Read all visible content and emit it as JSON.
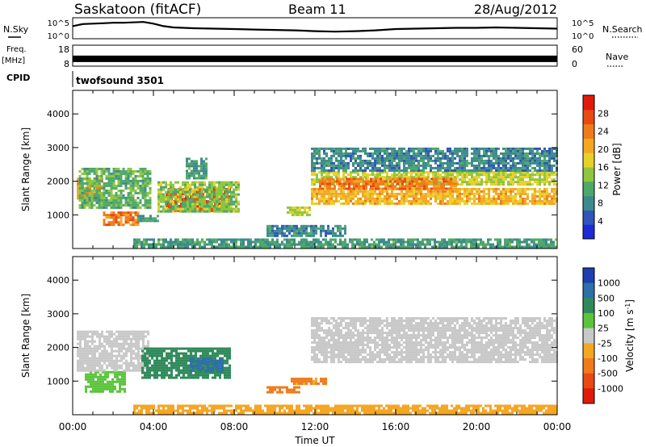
{
  "header": {
    "station": "Saskatoon (fitACF)",
    "beam": "Beam 11",
    "date": "28/Aug/2012"
  },
  "top_panels": {
    "nsky_label": "N.Sky",
    "noise_ticks": [
      "10^5",
      "10^0"
    ],
    "nsearch_label": "N.Search",
    "freq_label": "Freq.",
    "freq_unit": "[MHz]",
    "freq_ticks": [
      "18",
      "8"
    ],
    "nave_label": "Nave",
    "nave_ticks": [
      "60",
      "0"
    ],
    "cpid_label": "CPID",
    "cpid_value": "twofsound 3501"
  },
  "chart_data": [
    {
      "type": "line",
      "name": "noise-panel",
      "x_unit": "hours UT",
      "series": [
        {
          "name": "N.Sky",
          "x": [
            0,
            0.5,
            1,
            1.5,
            2,
            2.5,
            3,
            3.5,
            4,
            4.5,
            5,
            6,
            7,
            8,
            9,
            10,
            11,
            12,
            13,
            14,
            15,
            16,
            17,
            18,
            19,
            20,
            21,
            22,
            23,
            24
          ],
          "log10_y": [
            3.0,
            3.5,
            3.6,
            3.7,
            3.8,
            3.8,
            3.9,
            4.0,
            3.6,
            3.0,
            2.7,
            2.5,
            2.4,
            2.3,
            2.2,
            2.1,
            2.0,
            1.8,
            1.7,
            1.8,
            2.0,
            2.3,
            2.4,
            2.5,
            2.6,
            2.6,
            2.7,
            2.6,
            2.5,
            2.4
          ]
        }
      ],
      "ylim_log10": [
        0,
        5
      ]
    },
    {
      "type": "line",
      "name": "freq-nave-panel",
      "x_unit": "hours UT",
      "series": [
        {
          "name": "Freq.",
          "x": [
            0,
            24
          ],
          "y": [
            11.5,
            11.5
          ]
        }
      ],
      "ylim": [
        8,
        18
      ]
    },
    {
      "type": "heatmap",
      "name": "power-panel",
      "xlabel": "Time UT",
      "ylabel": "Slant Range [km]",
      "xlim": [
        0,
        24
      ],
      "ylim": [
        0,
        4700
      ],
      "x_ticks": [
        "00:00",
        "04:00",
        "08:00",
        "12:00",
        "16:00",
        "20:00",
        "00:00"
      ],
      "y_ticks": [
        1000,
        2000,
        3000,
        4000
      ],
      "colorbar": {
        "label": "Power [dB]",
        "ticks": [
          4,
          8,
          12,
          16,
          20,
          24,
          28
        ],
        "range": [
          0,
          32
        ],
        "colors": [
          "#1e2ad6",
          "#2f55b8",
          "#3d8a8c",
          "#4ea86a",
          "#8ec63e",
          "#e8d02a",
          "#f5a623",
          "#f07b1a",
          "#e84a12",
          "#e01a0a"
        ]
      },
      "regions": [
        {
          "t0": 0.2,
          "t1": 1.5,
          "r0": 1500,
          "r1": 2100,
          "value": 22
        },
        {
          "t0": 1.5,
          "t1": 3.2,
          "r0": 700,
          "r1": 1100,
          "value": 24
        },
        {
          "t0": 0.3,
          "t1": 3.8,
          "r0": 1200,
          "r1": 2400,
          "value": 12
        },
        {
          "t0": 3.2,
          "t1": 4.2,
          "r0": 800,
          "r1": 1000,
          "value": 10
        },
        {
          "t0": 4.6,
          "t1": 7.8,
          "r0": 1150,
          "r1": 1800,
          "value": 28
        },
        {
          "t0": 4.2,
          "t1": 8.2,
          "r0": 1100,
          "r1": 2000,
          "value": 14
        },
        {
          "t0": 5.6,
          "t1": 6.6,
          "r0": 2100,
          "r1": 2700,
          "value": 10
        },
        {
          "t0": 10.6,
          "t1": 11.8,
          "r0": 1000,
          "r1": 1250,
          "value": 16
        },
        {
          "t0": 9.6,
          "t1": 13.5,
          "r0": 350,
          "r1": 700,
          "value": 8
        },
        {
          "t0": 11.8,
          "t1": 24.0,
          "r0": 1300,
          "r1": 1800,
          "value": 20
        },
        {
          "t0": 11.8,
          "t1": 24.0,
          "r0": 1900,
          "r1": 2300,
          "value": 16
        },
        {
          "t0": 11.8,
          "t1": 24.0,
          "r0": 2300,
          "r1": 3000,
          "value": 8
        },
        {
          "t0": 12.2,
          "t1": 19.0,
          "r0": 1800,
          "r1": 2100,
          "value": 24
        },
        {
          "t0": 3.0,
          "t1": 24.0,
          "r0": 50,
          "r1": 300,
          "value": 10
        }
      ]
    },
    {
      "type": "heatmap",
      "name": "velocity-panel",
      "xlabel": "Time UT",
      "ylabel": "Slant Range [km]",
      "xlim": [
        0,
        24
      ],
      "ylim": [
        0,
        4700
      ],
      "x_ticks": [
        "00:00",
        "04:00",
        "08:00",
        "12:00",
        "16:00",
        "20:00",
        "00:00"
      ],
      "y_ticks": [
        1000,
        2000,
        3000,
        4000
      ],
      "colorbar": {
        "label": "Velocity [m s",
        "label_sup": "-1",
        "label_end": "]",
        "ticks": [
          "1000",
          "500",
          "100",
          "25",
          "-25",
          "-100",
          "-500",
          "-1000"
        ],
        "colors": [
          "#1e3fb0",
          "#2e70a8",
          "#2f8a5a",
          "#5bc43c",
          "#c8c8c8",
          "#f5a623",
          "#f07b1a",
          "#e84a12",
          "#e01a0a"
        ]
      },
      "regions": [
        {
          "t0": 0.6,
          "t1": 2.6,
          "r0": 700,
          "r1": 1300,
          "value": 80
        },
        {
          "t0": 0.2,
          "t1": 3.8,
          "r0": 1300,
          "r1": 2500,
          "value": 0
        },
        {
          "t0": 3.4,
          "t1": 7.8,
          "r0": 1100,
          "r1": 2000,
          "value": 200
        },
        {
          "t0": 5.8,
          "t1": 7.4,
          "r0": 1300,
          "r1": 1700,
          "value": 600
        },
        {
          "t0": 9.6,
          "t1": 11.2,
          "r0": 650,
          "r1": 850,
          "value": -200
        },
        {
          "t0": 10.8,
          "t1": 12.6,
          "r0": 900,
          "r1": 1100,
          "value": -120
        },
        {
          "t0": 11.8,
          "t1": 24.0,
          "r0": 1600,
          "r1": 2900,
          "value": 0
        },
        {
          "t0": 3.0,
          "t1": 24.0,
          "r0": 50,
          "r1": 300,
          "value": -80
        }
      ]
    }
  ]
}
